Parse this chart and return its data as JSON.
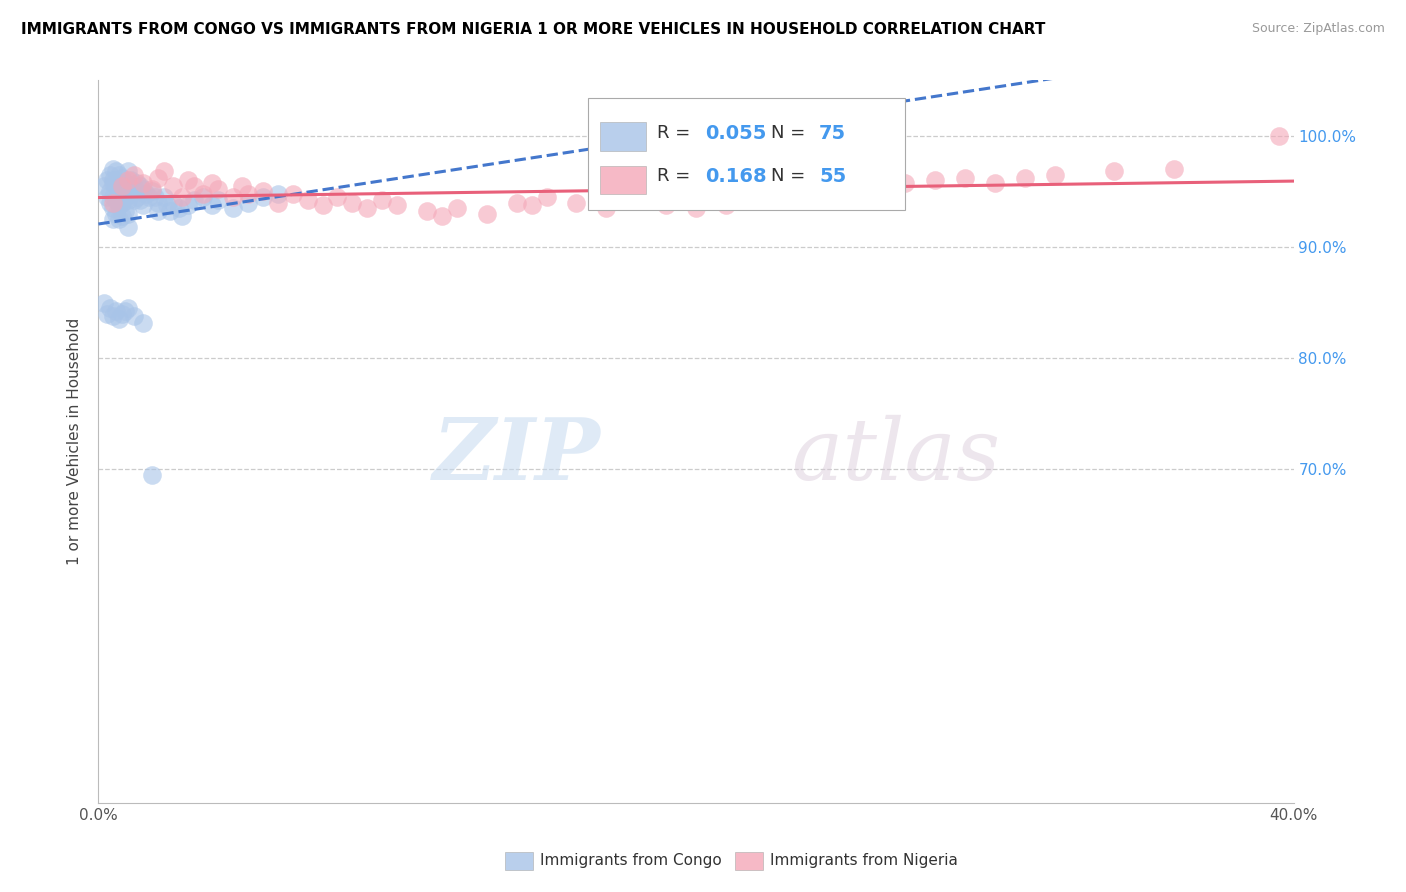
{
  "title": "IMMIGRANTS FROM CONGO VS IMMIGRANTS FROM NIGERIA 1 OR MORE VEHICLES IN HOUSEHOLD CORRELATION CHART",
  "source": "Source: ZipAtlas.com",
  "ylabel": "1 or more Vehicles in Household",
  "xlim": [
    0.0,
    0.4
  ],
  "ylim": [
    0.4,
    1.05
  ],
  "ytick_vals": [
    0.7,
    0.8,
    0.9,
    1.0
  ],
  "ytick_labels": [
    "70.0%",
    "80.0%",
    "90.0%",
    "100.0%"
  ],
  "xtick_labels_show": [
    "0.0%",
    "40.0%"
  ],
  "legend_r_congo": "0.055",
  "legend_n_congo": "75",
  "legend_r_nigeria": "0.168",
  "legend_n_nigeria": "55",
  "congo_color": "#a8c4e8",
  "nigeria_color": "#f4a8b8",
  "trendline_congo_color": "#4477CC",
  "trendline_nigeria_color": "#e8607a",
  "watermark_zip": "ZIP",
  "watermark_atlas": "atlas",
  "bottom_legend_congo": "Immigrants from Congo",
  "bottom_legend_nigeria": "Immigrants from Nigeria",
  "congo_x": [
    0.002,
    0.003,
    0.003,
    0.004,
    0.004,
    0.004,
    0.005,
    0.005,
    0.005,
    0.005,
    0.005,
    0.005,
    0.006,
    0.006,
    0.006,
    0.006,
    0.007,
    0.007,
    0.007,
    0.007,
    0.008,
    0.008,
    0.008,
    0.008,
    0.009,
    0.009,
    0.009,
    0.01,
    0.01,
    0.01,
    0.01,
    0.01,
    0.011,
    0.011,
    0.012,
    0.012,
    0.013,
    0.013,
    0.014,
    0.014,
    0.015,
    0.015,
    0.016,
    0.017,
    0.018,
    0.019,
    0.02,
    0.02,
    0.022,
    0.023,
    0.024,
    0.025,
    0.027,
    0.028,
    0.03,
    0.032,
    0.035,
    0.038,
    0.04,
    0.045,
    0.05,
    0.055,
    0.06,
    0.002,
    0.003,
    0.004,
    0.005,
    0.006,
    0.007,
    0.008,
    0.009,
    0.01,
    0.012,
    0.015,
    0.018
  ],
  "congo_y": [
    0.955,
    0.96,
    0.945,
    0.965,
    0.95,
    0.94,
    0.97,
    0.958,
    0.945,
    0.935,
    0.925,
    0.96,
    0.968,
    0.955,
    0.942,
    0.93,
    0.965,
    0.95,
    0.938,
    0.925,
    0.962,
    0.95,
    0.94,
    0.928,
    0.958,
    0.945,
    0.932,
    0.968,
    0.955,
    0.942,
    0.93,
    0.918,
    0.96,
    0.948,
    0.955,
    0.942,
    0.958,
    0.945,
    0.955,
    0.942,
    0.952,
    0.938,
    0.948,
    0.945,
    0.95,
    0.945,
    0.94,
    0.932,
    0.945,
    0.938,
    0.932,
    0.94,
    0.935,
    0.928,
    0.938,
    0.942,
    0.945,
    0.938,
    0.942,
    0.935,
    0.94,
    0.945,
    0.948,
    0.85,
    0.84,
    0.845,
    0.838,
    0.842,
    0.835,
    0.84,
    0.842,
    0.845,
    0.838,
    0.832,
    0.695
  ],
  "nigeria_x": [
    0.005,
    0.008,
    0.01,
    0.012,
    0.015,
    0.018,
    0.02,
    0.022,
    0.025,
    0.028,
    0.03,
    0.032,
    0.035,
    0.038,
    0.04,
    0.045,
    0.048,
    0.05,
    0.055,
    0.06,
    0.065,
    0.07,
    0.075,
    0.08,
    0.085,
    0.09,
    0.095,
    0.1,
    0.11,
    0.115,
    0.12,
    0.13,
    0.14,
    0.145,
    0.15,
    0.16,
    0.17,
    0.18,
    0.19,
    0.2,
    0.21,
    0.22,
    0.23,
    0.24,
    0.25,
    0.26,
    0.27,
    0.28,
    0.29,
    0.3,
    0.31,
    0.32,
    0.34,
    0.36,
    0.395
  ],
  "nigeria_y": [
    0.94,
    0.955,
    0.96,
    0.965,
    0.958,
    0.952,
    0.962,
    0.968,
    0.955,
    0.945,
    0.96,
    0.955,
    0.948,
    0.958,
    0.952,
    0.945,
    0.955,
    0.948,
    0.95,
    0.94,
    0.948,
    0.942,
    0.938,
    0.945,
    0.94,
    0.935,
    0.942,
    0.938,
    0.932,
    0.928,
    0.935,
    0.93,
    0.94,
    0.938,
    0.945,
    0.94,
    0.935,
    0.942,
    0.938,
    0.935,
    0.938,
    0.942,
    0.945,
    0.948,
    0.952,
    0.955,
    0.958,
    0.96,
    0.962,
    0.958,
    0.962,
    0.965,
    0.968,
    0.97,
    1.0
  ]
}
